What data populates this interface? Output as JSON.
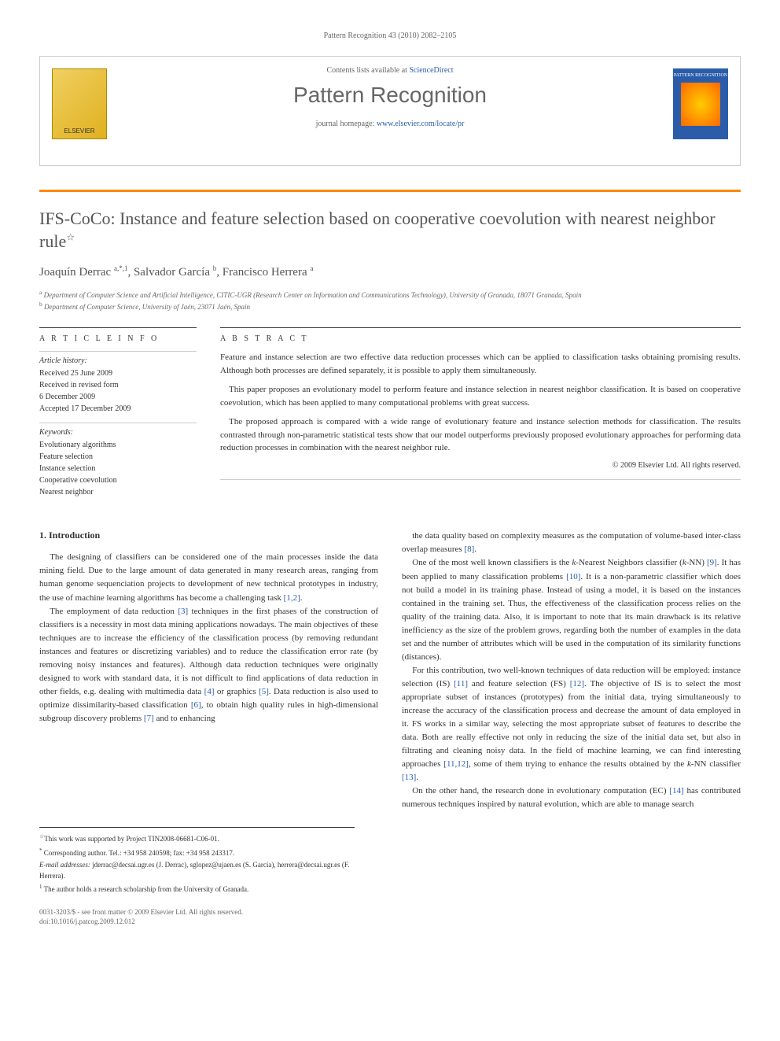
{
  "topbar": "Pattern Recognition 43 (2010) 2082–2105",
  "header": {
    "contents_prefix": "Contents lists available at ",
    "contents_link": "ScienceDirect",
    "journal_name": "Pattern Recognition",
    "homepage_prefix": "journal homepage: ",
    "homepage_link": "www.elsevier.com/locate/pr",
    "elsevier_text": "ELSEVIER",
    "cover_title": "PATTERN RECOGNITION"
  },
  "article": {
    "title": "IFS-CoCo: Instance and feature selection based on cooperative coevolution with nearest neighbor rule",
    "star": "☆",
    "authors_html": "Joaquín Derrac <sup>a,*,1</sup>, Salvador García <sup>b</sup>, Francisco Herrera <sup>a</sup>",
    "affiliation_a": "Department of Computer Science and Artificial Intelligence, CITIC-UGR (Research Center on Information and Communications Technology), University of Granada, 18071 Granada, Spain",
    "affiliation_b": "Department of Computer Science, University of Jaén, 23071 Jaén, Spain"
  },
  "article_info": {
    "heading": "A R T I C L E   I N F O",
    "history_label": "Article history:",
    "history_lines": [
      "Received 25 June 2009",
      "Received in revised form",
      "6 December 2009",
      "Accepted 17 December 2009"
    ],
    "keywords_label": "Keywords:",
    "keywords": [
      "Evolutionary algorithms",
      "Feature selection",
      "Instance selection",
      "Cooperative coevolution",
      "Nearest neighbor"
    ]
  },
  "abstract": {
    "heading": "A B S T R A C T",
    "paragraphs": [
      "Feature and instance selection are two effective data reduction processes which can be applied to classification tasks obtaining promising results. Although both processes are defined separately, it is possible to apply them simultaneously.",
      "This paper proposes an evolutionary model to perform feature and instance selection in nearest neighbor classification. It is based on cooperative coevolution, which has been applied to many computational problems with great success.",
      "The proposed approach is compared with a wide range of evolutionary feature and instance selection methods for classification. The results contrasted through non-parametric statistical tests show that our model outperforms previously proposed evolutionary approaches for performing data reduction processes in combination with the nearest neighbor rule."
    ],
    "copyright": "© 2009 Elsevier Ltd. All rights reserved."
  },
  "body": {
    "section_heading": "1. Introduction",
    "left_paragraphs": [
      "The designing of classifiers can be considered one of the main processes inside the data mining field. Due to the large amount of data generated in many research areas, ranging from human genome sequenciation projects to development of new technical prototypes in industry, the use of machine learning algorithms has become a challenging task [1,2].",
      "The employment of data reduction [3] techniques in the first phases of the construction of classifiers is a necessity in most data mining applications nowadays. The main objectives of these techniques are to increase the efficiency of the classification process (by removing redundant instances and features or discretizing variables) and to reduce the classification error rate (by removing noisy instances and features). Although data reduction techniques were originally designed to work with standard data, it is not difficult to find applications of data reduction in other fields, e.g. dealing with multimedia data [4] or graphics [5]. Data reduction is also used to optimize dissimilarity-based classification [6], to obtain high quality rules in high-dimensional subgroup discovery problems [7] and to enhancing"
    ],
    "right_paragraphs": [
      "the data quality based on complexity measures as the computation of volume-based inter-class overlap measures [8].",
      "One of the most well known classifiers is the k-Nearest Neighbors classifier (k-NN) [9]. It has been applied to many classification problems [10]. It is a non-parametric classifier which does not build a model in its training phase. Instead of using a model, it is based on the instances contained in the training set. Thus, the effectiveness of the classification process relies on the quality of the training data. Also, it is important to note that its main drawback is its relative inefficiency as the size of the problem grows, regarding both the number of examples in the data set and the number of attributes which will be used in the computation of its similarity functions (distances).",
      "For this contribution, two well-known techniques of data reduction will be employed: instance selection (IS) [11] and feature selection (FS) [12]. The objective of IS is to select the most appropriate subset of instances (prototypes) from the initial data, trying simultaneously to increase the accuracy of the classification process and decrease the amount of data employed in it. FS works in a similar way, selecting the most appropriate subset of features to describe the data. Both are really effective not only in reducing the size of the initial data set, but also in filtrating and cleaning noisy data. In the field of machine learning, we can find interesting approaches [11,12], some of them trying to enhance the results obtained by the k-NN classifier [13].",
      "On the other hand, the research done in evolutionary computation (EC) [14] has contributed numerous techniques inspired by natural evolution, which are able to manage search"
    ]
  },
  "footnotes": {
    "star": "This work was supported by Project TIN2008-06681-C06-01.",
    "corresp": "Corresponding author. Tel.: +34 958 240598; fax: +34 958 243317.",
    "emails_label": "E-mail addresses:",
    "emails": " jderrac@decsai.ugr.es (J. Derrac), sglopez@ujaen.es (S. García), herrera@decsai.ugr.es (F. Herrera).",
    "note1": "The author holds a research scholarship from the University of Granada."
  },
  "footer": {
    "line1": "0031-3203/$ - see front matter © 2009 Elsevier Ltd. All rights reserved.",
    "line2": "doi:10.1016/j.patcog.2009.12.012"
  },
  "refs": [
    "[1,2]",
    "[3]",
    "[4]",
    "[5]",
    "[6]",
    "[7]",
    "[8]",
    "[9]",
    "[10]",
    "[11]",
    "[12]",
    "[11,12]",
    "[13]",
    "[14]"
  ]
}
